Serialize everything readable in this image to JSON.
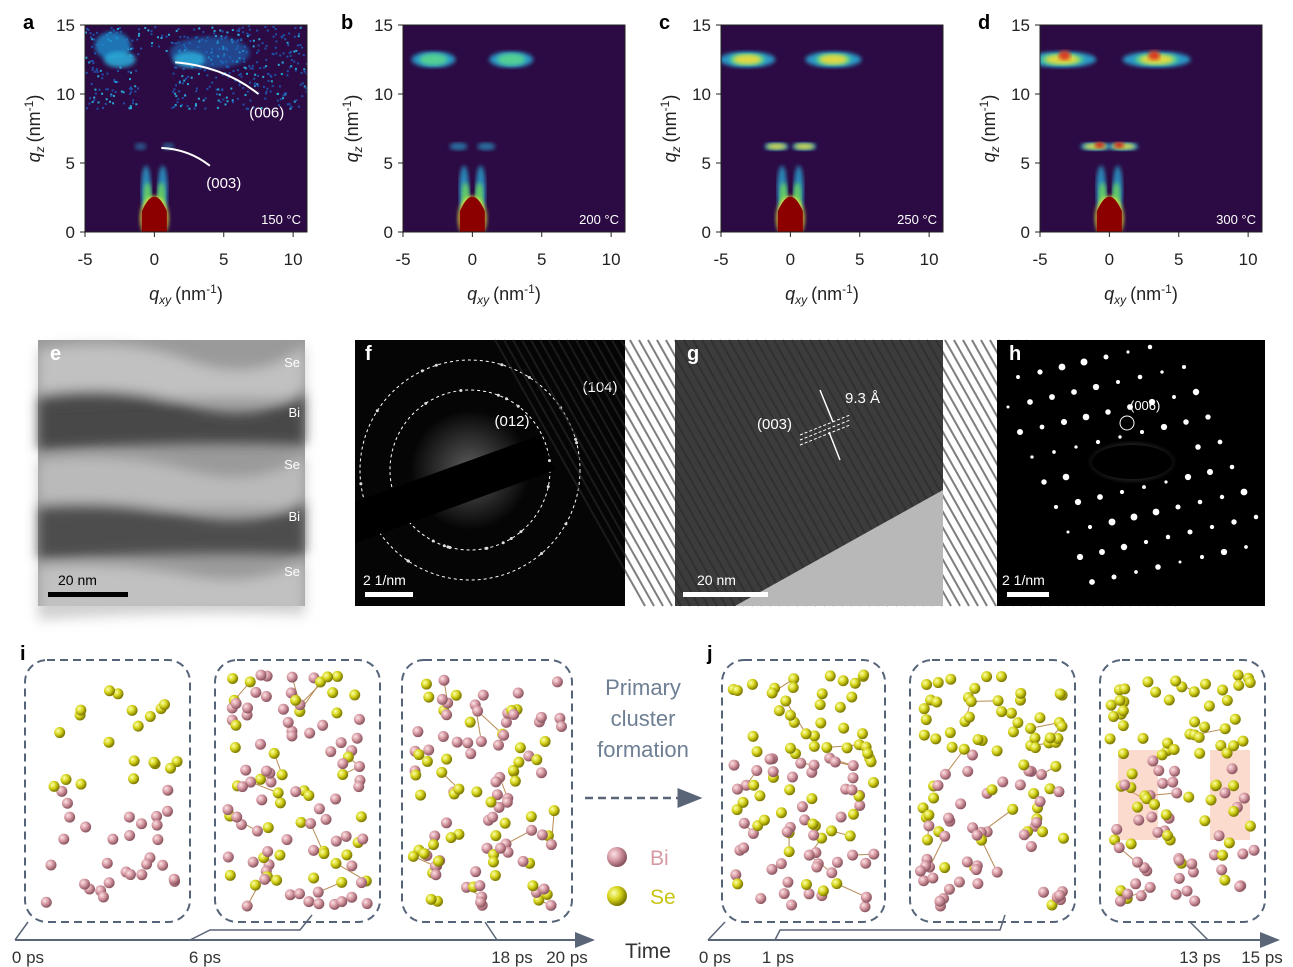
{
  "giwaxs": {
    "x_axis_label": {
      "symbol": "q",
      "subscript": "xy",
      "unit": "(nm",
      "exponent": "-1",
      "close": ")"
    },
    "y_axis_label": {
      "symbol": "q",
      "subscript": "z",
      "unit": "(nm",
      "exponent": "-1",
      "close": ")"
    },
    "xticks": [
      "-5",
      "0",
      "5",
      "10"
    ],
    "yticks": [
      "0",
      "5",
      "10",
      "15"
    ],
    "panels": [
      {
        "letter": "a",
        "temperature": "150 °C",
        "annotations": [
          "(006)",
          "(003)"
        ]
      },
      {
        "letter": "b",
        "temperature": "200 °C"
      },
      {
        "letter": "c",
        "temperature": "250 °C"
      },
      {
        "letter": "d",
        "temperature": "300 °C"
      }
    ]
  },
  "tem": {
    "e": {
      "letter": "e",
      "layers": [
        "Se",
        "Bi",
        "Se",
        "Bi",
        "Se"
      ],
      "scale": "20 nm"
    },
    "f": {
      "letter": "f",
      "rings": [
        "(104)",
        "(012)"
      ],
      "scale": "2 1/nm"
    },
    "g": {
      "letter": "g",
      "spacing": "9.3 Å",
      "plane": "(003)",
      "scale": "20 nm"
    },
    "h": {
      "letter": "h",
      "spot": "(006)",
      "scale": "2 1/nm"
    }
  },
  "md": {
    "i": {
      "letter": "i",
      "times": [
        "0 ps",
        "6 ps",
        "18 ps",
        "20 ps"
      ]
    },
    "j": {
      "letter": "j",
      "times": [
        "0 ps",
        "1 ps",
        "13 ps",
        "15 ps"
      ]
    },
    "transition": [
      "Primary",
      "cluster",
      "formation"
    ],
    "legend": [
      "Bi",
      "Se"
    ],
    "time_label": "Time"
  }
}
